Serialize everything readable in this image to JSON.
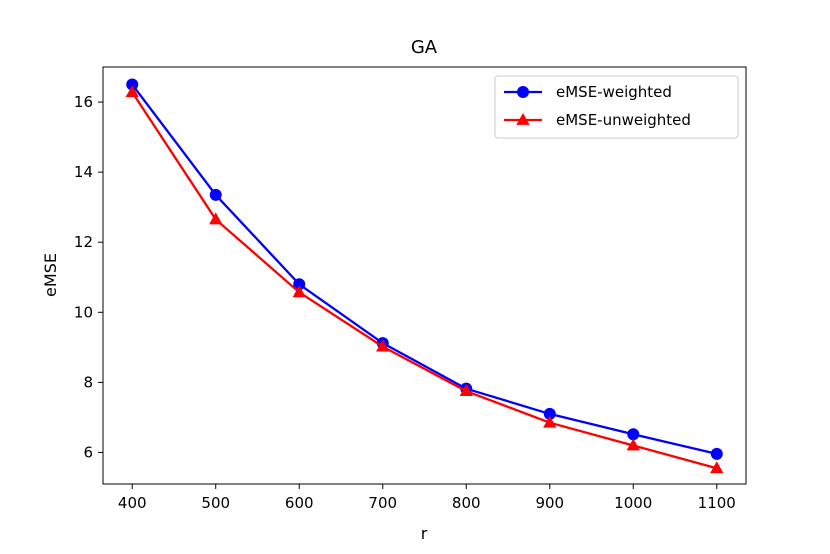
{
  "chart_data": {
    "type": "line",
    "title": "GA",
    "xlabel": "r",
    "ylabel": "eMSE",
    "x": [
      400,
      500,
      600,
      700,
      800,
      900,
      1000,
      1100
    ],
    "xlim": [
      365,
      1135
    ],
    "ylim": [
      5.1,
      17.0
    ],
    "xticks": [
      400,
      500,
      600,
      700,
      800,
      900,
      1000,
      1100
    ],
    "yticks": [
      6,
      8,
      10,
      12,
      14,
      16
    ],
    "grid": false,
    "legend_position": "top-right",
    "series": [
      {
        "name": "eMSE-weighted",
        "marker": "circle",
        "color": "#0000ff",
        "values": [
          16.5,
          13.35,
          10.8,
          9.12,
          7.82,
          7.1,
          6.52,
          5.96
        ]
      },
      {
        "name": "eMSE-unweighted",
        "marker": "triangle",
        "color": "#ff0000",
        "values": [
          16.28,
          12.65,
          10.57,
          9.02,
          7.75,
          6.85,
          6.2,
          5.55
        ]
      }
    ]
  }
}
